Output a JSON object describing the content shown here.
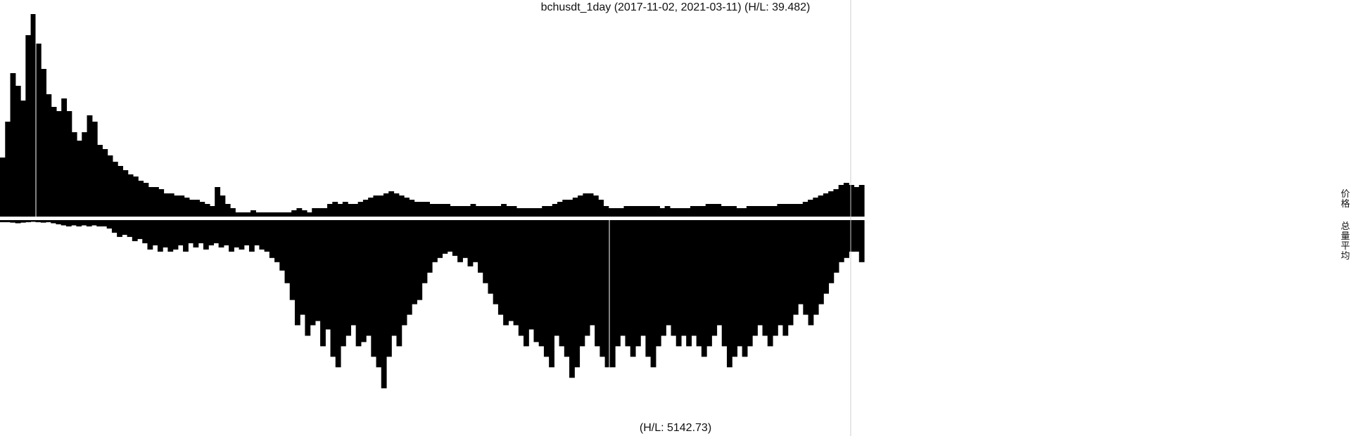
{
  "chart_data": [
    {
      "type": "area",
      "title": "bchusdt_1day (2017-11-02, 2021-03-11) (H/L: 39.482)",
      "x_start": "2017-11-02",
      "x_end": "2021-03-11",
      "series": [
        {
          "name": "价格",
          "values": [
            0.28,
            0.45,
            0.68,
            0.62,
            0.55,
            0.86,
            0.96,
            0.82,
            0.7,
            0.58,
            0.52,
            0.5,
            0.56,
            0.5,
            0.4,
            0.36,
            0.4,
            0.48,
            0.45,
            0.34,
            0.32,
            0.29,
            0.26,
            0.24,
            0.22,
            0.2,
            0.19,
            0.17,
            0.16,
            0.14,
            0.14,
            0.13,
            0.11,
            0.11,
            0.1,
            0.1,
            0.09,
            0.08,
            0.08,
            0.07,
            0.06,
            0.05,
            0.14,
            0.1,
            0.06,
            0.04,
            0.02,
            0.02,
            0.02,
            0.03,
            0.02,
            0.02,
            0.02,
            0.02,
            0.02,
            0.02,
            0.02,
            0.03,
            0.04,
            0.03,
            0.02,
            0.04,
            0.04,
            0.04,
            0.06,
            0.07,
            0.06,
            0.07,
            0.06,
            0.06,
            0.07,
            0.08,
            0.09,
            0.1,
            0.1,
            0.11,
            0.12,
            0.11,
            0.1,
            0.09,
            0.08,
            0.07,
            0.07,
            0.07,
            0.06,
            0.06,
            0.06,
            0.06,
            0.05,
            0.05,
            0.05,
            0.05,
            0.06,
            0.05,
            0.05,
            0.05,
            0.05,
            0.05,
            0.06,
            0.05,
            0.05,
            0.04,
            0.04,
            0.04,
            0.04,
            0.04,
            0.05,
            0.05,
            0.06,
            0.07,
            0.08,
            0.08,
            0.09,
            0.1,
            0.11,
            0.11,
            0.1,
            0.08,
            0.05,
            0.04,
            0.04,
            0.04,
            0.05,
            0.05,
            0.05,
            0.05,
            0.05,
            0.05,
            0.05,
            0.04,
            0.05,
            0.04,
            0.04,
            0.04,
            0.04,
            0.05,
            0.05,
            0.05,
            0.06,
            0.06,
            0.06,
            0.05,
            0.05,
            0.05,
            0.04,
            0.04,
            0.05,
            0.05,
            0.05,
            0.05,
            0.05,
            0.05,
            0.06,
            0.06,
            0.06,
            0.06,
            0.06,
            0.07,
            0.08,
            0.09,
            0.1,
            0.11,
            0.12,
            0.13,
            0.15,
            0.16,
            0.15,
            0.14,
            0.15
          ]
        },
        {
          "name": "总量平均",
          "values": [
            0.01,
            0.01,
            0.012,
            0.015,
            0.012,
            0.01,
            0.008,
            0.01,
            0.012,
            0.01,
            0.015,
            0.02,
            0.025,
            0.03,
            0.025,
            0.03,
            0.025,
            0.03,
            0.025,
            0.03,
            0.03,
            0.04,
            0.06,
            0.08,
            0.07,
            0.08,
            0.1,
            0.09,
            0.11,
            0.14,
            0.12,
            0.15,
            0.13,
            0.15,
            0.14,
            0.12,
            0.15,
            0.11,
            0.13,
            0.11,
            0.14,
            0.12,
            0.11,
            0.13,
            0.12,
            0.15,
            0.13,
            0.14,
            0.12,
            0.15,
            0.12,
            0.14,
            0.15,
            0.18,
            0.2,
            0.24,
            0.3,
            0.38,
            0.5,
            0.45,
            0.55,
            0.5,
            0.48,
            0.6,
            0.52,
            0.65,
            0.7,
            0.6,
            0.55,
            0.5,
            0.6,
            0.58,
            0.55,
            0.65,
            0.7,
            0.8,
            0.65,
            0.55,
            0.6,
            0.5,
            0.45,
            0.4,
            0.38,
            0.3,
            0.25,
            0.2,
            0.18,
            0.16,
            0.15,
            0.17,
            0.2,
            0.18,
            0.22,
            0.2,
            0.25,
            0.3,
            0.35,
            0.4,
            0.45,
            0.5,
            0.48,
            0.5,
            0.55,
            0.6,
            0.52,
            0.58,
            0.6,
            0.65,
            0.7,
            0.55,
            0.6,
            0.65,
            0.75,
            0.7,
            0.6,
            0.55,
            0.5,
            0.6,
            0.65,
            0.7,
            0.7,
            0.6,
            0.55,
            0.6,
            0.65,
            0.6,
            0.55,
            0.65,
            0.7,
            0.6,
            0.55,
            0.5,
            0.55,
            0.6,
            0.55,
            0.6,
            0.55,
            0.6,
            0.65,
            0.6,
            0.55,
            0.5,
            0.6,
            0.7,
            0.65,
            0.6,
            0.65,
            0.6,
            0.55,
            0.5,
            0.55,
            0.6,
            0.55,
            0.5,
            0.55,
            0.5,
            0.45,
            0.4,
            0.45,
            0.5,
            0.45,
            0.4,
            0.35,
            0.3,
            0.25,
            0.2,
            0.18,
            0.15,
            0.15,
            0.2
          ]
        }
      ],
      "annotations": [
        "(H/L: 5142.73)"
      ],
      "grid": false,
      "legend_placement": "right",
      "colors": {
        "fill": "#000000",
        "background": "#ffffff",
        "divider": "#cccccc"
      }
    }
  ]
}
